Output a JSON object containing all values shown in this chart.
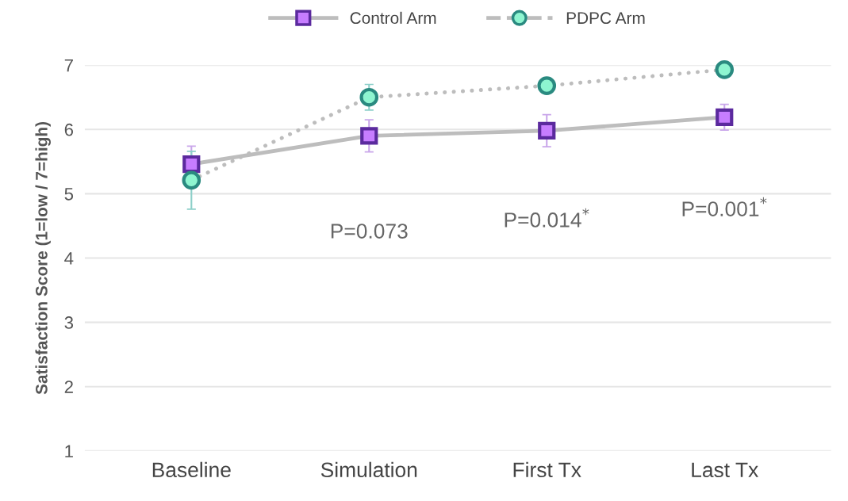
{
  "chart_data": {
    "type": "line",
    "ylabel": "Satisfaction Score (1=low / 7=high)",
    "categories": [
      "Baseline",
      "Simulation",
      "First Tx",
      "Last Tx"
    ],
    "series": [
      {
        "name": "Control Arm",
        "color": "#5b2a9e",
        "values": [
          5.46,
          5.9,
          5.98,
          6.19
        ],
        "errors": [
          0.28,
          0.25,
          0.25,
          0.2
        ],
        "marker": "square",
        "line_style": "solid"
      },
      {
        "name": "PDPC Arm",
        "color": "#2a8a80",
        "values": [
          5.21,
          6.5,
          6.68,
          6.93
        ],
        "errors": [
          0.45,
          0.2,
          0.1,
          null
        ],
        "marker": "circle",
        "line_style": "dotted"
      }
    ],
    "ylim": [
      1,
      7
    ],
    "yticks": [
      1,
      2,
      3,
      4,
      5,
      6,
      7
    ],
    "grid": "y",
    "legend": "top",
    "annotations": [
      "P=0.073",
      "P=0.014$^{*}$",
      "P=0.001$^{*}$"
    ]
  }
}
